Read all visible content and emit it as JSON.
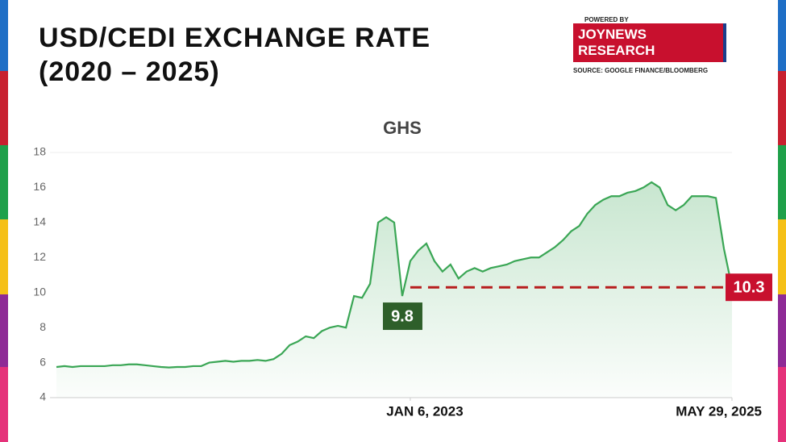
{
  "header": {
    "title": "USD/CEDI EXCHANGE RATE (2020 – 2025)",
    "powered_by": "POWERED BY",
    "brand": "JOYNEWS RESEARCH",
    "source": "SOURCE: GOOGLE FINANCE/BLOOMBERG"
  },
  "chart_data": {
    "type": "line",
    "title": "GHS",
    "color": "#3aa655",
    "categories": [
      null,
      null,
      null,
      null,
      null,
      null,
      null,
      null,
      null,
      null,
      null,
      null,
      null,
      null,
      null,
      null,
      null,
      null,
      null,
      null,
      null,
      null,
      null,
      null,
      null,
      null,
      null,
      null,
      null,
      null,
      null,
      null,
      null,
      null,
      null,
      null,
      null,
      null,
      null,
      null,
      null,
      null,
      null,
      null,
      "JAN 6, 2023",
      null,
      null,
      null,
      null,
      null,
      null,
      null,
      null,
      null,
      null,
      null,
      null,
      null,
      null,
      null,
      null,
      null,
      null,
      null,
      null,
      null,
      null,
      null,
      null,
      null,
      null,
      null,
      null,
      null,
      null,
      null,
      null,
      null,
      null,
      null,
      null,
      null,
      null,
      null,
      "MAY 29, 2025"
    ],
    "values": [
      5.75,
      5.8,
      5.75,
      5.8,
      5.8,
      5.8,
      5.8,
      5.85,
      5.85,
      5.9,
      5.9,
      5.85,
      5.8,
      5.75,
      5.72,
      5.75,
      5.75,
      5.8,
      5.8,
      6.0,
      6.05,
      6.1,
      6.05,
      6.1,
      6.1,
      6.15,
      6.1,
      6.2,
      6.5,
      7.0,
      7.2,
      7.5,
      7.4,
      7.8,
      8.0,
      8.1,
      8.0,
      9.8,
      9.7,
      10.5,
      14.0,
      14.3,
      14.0,
      9.8,
      11.8,
      12.4,
      12.8,
      11.8,
      11.2,
      11.6,
      10.8,
      11.2,
      11.4,
      11.2,
      11.4,
      11.5,
      11.6,
      11.8,
      11.9,
      12.0,
      12.0,
      12.3,
      12.6,
      13.0,
      13.5,
      13.8,
      14.5,
      15.0,
      15.3,
      15.5,
      15.5,
      15.7,
      15.8,
      16.0,
      16.3,
      16.0,
      15.0,
      14.7,
      15.0,
      15.5,
      15.5,
      15.5,
      15.4,
      12.5,
      10.3
    ],
    "value_labels": [
      null,
      null,
      null,
      null,
      null,
      null,
      null,
      null,
      null,
      null,
      null,
      null,
      null,
      null,
      null,
      null,
      null,
      null,
      null,
      null,
      null,
      null,
      null,
      null,
      null,
      null,
      null,
      null,
      null,
      null,
      null,
      null,
      null,
      null,
      null,
      null,
      null,
      null,
      null,
      null,
      null,
      null,
      null,
      "9.8",
      null,
      null,
      null,
      null,
      null,
      null,
      null,
      null,
      null,
      null,
      null,
      null,
      null,
      null,
      null,
      null,
      null,
      null,
      null,
      null,
      null,
      null,
      null,
      null,
      null,
      null,
      null,
      null,
      null,
      null,
      null,
      null,
      null,
      null,
      null,
      null,
      null,
      null,
      null,
      null,
      "10.3"
    ],
    "ylim": [
      4,
      18
    ],
    "yticks": [
      4,
      6,
      8,
      10,
      12,
      14,
      16,
      18
    ],
    "grid": false
  }
}
